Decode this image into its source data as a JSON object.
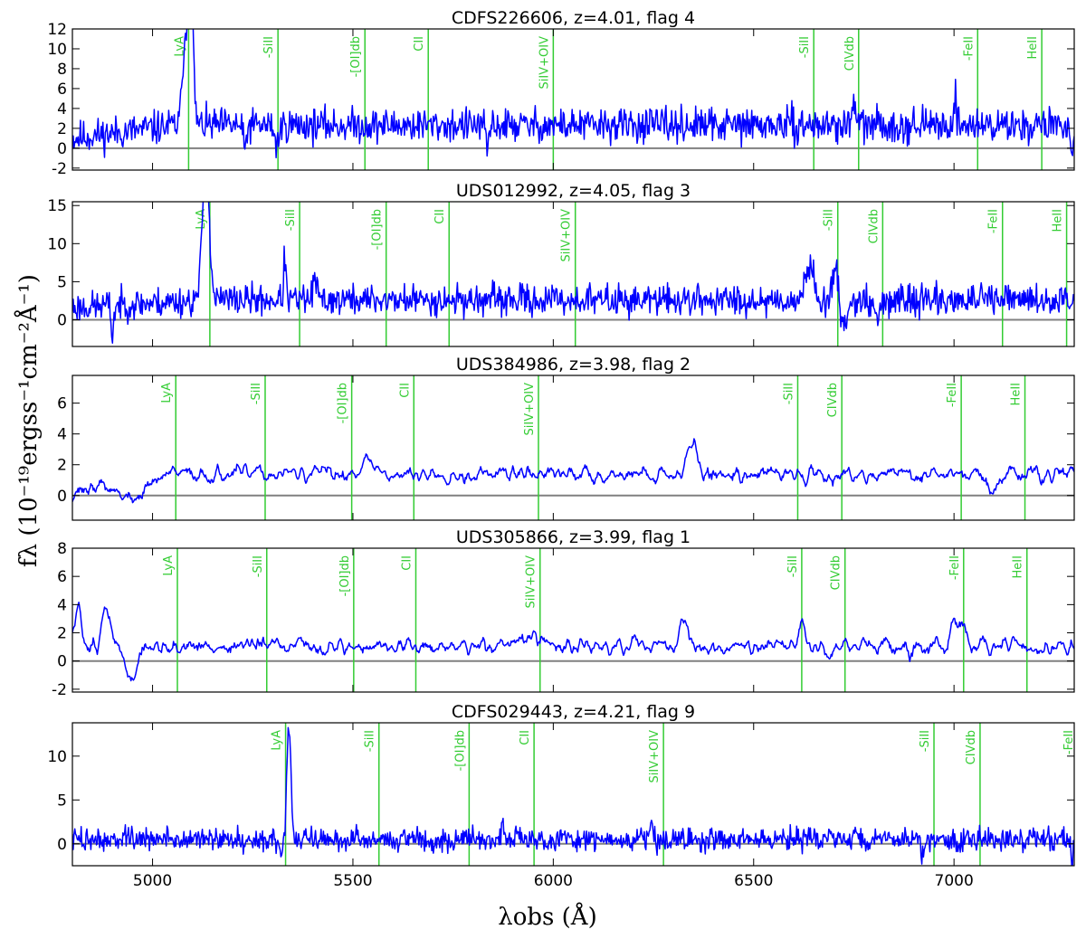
{
  "chart_data": {
    "type": "line",
    "xlabel": "λobs (Å)",
    "ylabel": "fλ (10⁻¹⁹ergss⁻¹cm⁻²Å⁻¹)",
    "xlim": [
      4800,
      7300
    ],
    "xticks": [
      5000,
      5500,
      6000,
      6500,
      7000
    ],
    "colors": {
      "spectrum": "#0000ff",
      "lines": "#33cc33",
      "zero": "#808080"
    },
    "grid": false,
    "panels": [
      {
        "title": "CDFS226606, z=4.01, flag 4",
        "ylim": [
          -2.2,
          12
        ],
        "yticks": [
          -2,
          0,
          2,
          4,
          6,
          8,
          10,
          12
        ],
        "noise": 0.85,
        "baseline": 2.3,
        "low_start": 1.0,
        "low_end": 5060,
        "smooth": 1,
        "seed": 11,
        "features": [
          [
            5080,
            8,
            6
          ],
          [
            5095,
            16,
            6
          ],
          [
            5310,
            -2,
            5
          ],
          [
            5230,
            -2.5,
            4
          ],
          [
            5835,
            -2.4,
            4
          ],
          [
            6750,
            2.5,
            4
          ],
          [
            7003,
            2.5,
            4
          ],
          [
            7295,
            -2.5,
            5
          ]
        ],
        "lines": [
          {
            "label": "LyA",
            "x": 5090
          },
          {
            "label": "-SiII",
            "x": 5313
          },
          {
            "label": "-[OI]db",
            "x": 5530
          },
          {
            "label": "CII",
            "x": 5688
          },
          {
            "label": "SiIV+OIV",
            "x": 6000
          },
          {
            "label": "-SiII",
            "x": 6650
          },
          {
            "label": "CIVdb",
            "x": 6762
          },
          {
            "label": "-FeII",
            "x": 7059
          },
          {
            "label": "HeII",
            "x": 7219
          }
        ]
      },
      {
        "title": "UDS012992, z=4.05, flag 3",
        "ylim": [
          -3.5,
          15.5
        ],
        "yticks": [
          0,
          5,
          10,
          15
        ],
        "noise": 1.0,
        "baseline": 2.6,
        "low_start": 1.6,
        "low_end": 5130,
        "smooth": 1,
        "seed": 23,
        "features": [
          [
            5133,
            20,
            8
          ],
          [
            5330,
            5.5,
            3
          ],
          [
            4900,
            -4,
            3
          ],
          [
            6640,
            4.5,
            10
          ],
          [
            6705,
            4.5,
            8
          ],
          [
            6720,
            -3.5,
            10
          ],
          [
            6810,
            -2,
            10
          ],
          [
            5405,
            2.5,
            5
          ]
        ],
        "lines": [
          {
            "label": "LyA",
            "x": 5143
          },
          {
            "label": "-SiII",
            "x": 5367
          },
          {
            "label": "-[OI]db",
            "x": 5583
          },
          {
            "label": "CII",
            "x": 5740
          },
          {
            "label": "SiIV+OIV",
            "x": 6055
          },
          {
            "label": "-SiII",
            "x": 6710
          },
          {
            "label": "CIVdb",
            "x": 6822
          },
          {
            "label": "-FeII",
            "x": 7121
          },
          {
            "label": "HeII",
            "x": 7281
          }
        ]
      },
      {
        "title": "UDS384986, z=3.98, flag 2",
        "ylim": [
          -1.6,
          7.8
        ],
        "yticks": [
          0,
          2,
          4,
          6
        ],
        "noise": 0.55,
        "baseline": 1.4,
        "low_start": 0.3,
        "low_end": 5060,
        "smooth": 3,
        "seed": 37,
        "features": [
          [
            4950,
            -1.2,
            30
          ],
          [
            6345,
            2.0,
            12
          ],
          [
            7095,
            -1.3,
            12
          ],
          [
            5535,
            0.8,
            20
          ]
        ],
        "lines": [
          {
            "label": "LyA",
            "x": 5058
          },
          {
            "label": "-SiII",
            "x": 5281
          },
          {
            "label": "-[OI]db",
            "x": 5497
          },
          {
            "label": "CII",
            "x": 5652
          },
          {
            "label": "SiIV+OIV",
            "x": 5963
          },
          {
            "label": "-SiII",
            "x": 6610
          },
          {
            "label": "CIVdb",
            "x": 6720
          },
          {
            "label": "-FeII",
            "x": 7018
          },
          {
            "label": "HeII",
            "x": 7177
          }
        ]
      },
      {
        "title": "UDS305866, z=3.99, flag 1",
        "ylim": [
          -2.2,
          8
        ],
        "yticks": [
          -2,
          0,
          2,
          4,
          6,
          8
        ],
        "noise": 0.6,
        "baseline": 1.0,
        "low_start": 1.2,
        "low_end": 5060,
        "smooth": 3,
        "seed": 51,
        "features": [
          [
            4815,
            2.5,
            8
          ],
          [
            4885,
            2.5,
            10
          ],
          [
            4945,
            -2.2,
            15
          ],
          [
            6325,
            2.2,
            8
          ],
          [
            6620,
            1.8,
            6
          ],
          [
            7000,
            2.6,
            8
          ],
          [
            7025,
            1.6,
            6
          ],
          [
            5920,
            0.6,
            40
          ]
        ],
        "lines": [
          {
            "label": "LyA",
            "x": 5062
          },
          {
            "label": "-SiII",
            "x": 5285
          },
          {
            "label": "-[OI]db",
            "x": 5502
          },
          {
            "label": "CII",
            "x": 5657
          },
          {
            "label": "SiIV+OIV",
            "x": 5967
          },
          {
            "label": "-SiII",
            "x": 6620
          },
          {
            "label": "CIVdb",
            "x": 6728
          },
          {
            "label": "-FeII",
            "x": 7024
          },
          {
            "label": "HeII",
            "x": 7182
          }
        ]
      },
      {
        "title": "CDFS029443, z=4.21, flag 9",
        "ylim": [
          -2.5,
          13.8
        ],
        "yticks": [
          0,
          5,
          10
        ],
        "noise": 0.65,
        "baseline": 0.5,
        "low_start": 0.5,
        "low_end": 5300,
        "smooth": 1,
        "seed": 73,
        "features": [
          [
            5340,
            13,
            5
          ],
          [
            5320,
            -2.0,
            4
          ],
          [
            6245,
            2.5,
            3
          ],
          [
            6920,
            -2.2,
            4
          ],
          [
            7295,
            -2.2,
            4
          ],
          [
            5875,
            1.8,
            4
          ]
        ],
        "lines": [
          {
            "label": "LyA",
            "x": 5332
          },
          {
            "label": "-SiII",
            "x": 5565
          },
          {
            "label": "-[OI]db",
            "x": 5790
          },
          {
            "label": "CII",
            "x": 5952
          },
          {
            "label": "SiIV+OIV",
            "x": 6275
          },
          {
            "label": "-SiII",
            "x": 6950
          },
          {
            "label": "CIVdb",
            "x": 7065
          },
          {
            "label": "-FeII",
            "x": 7375
          }
        ]
      }
    ]
  }
}
